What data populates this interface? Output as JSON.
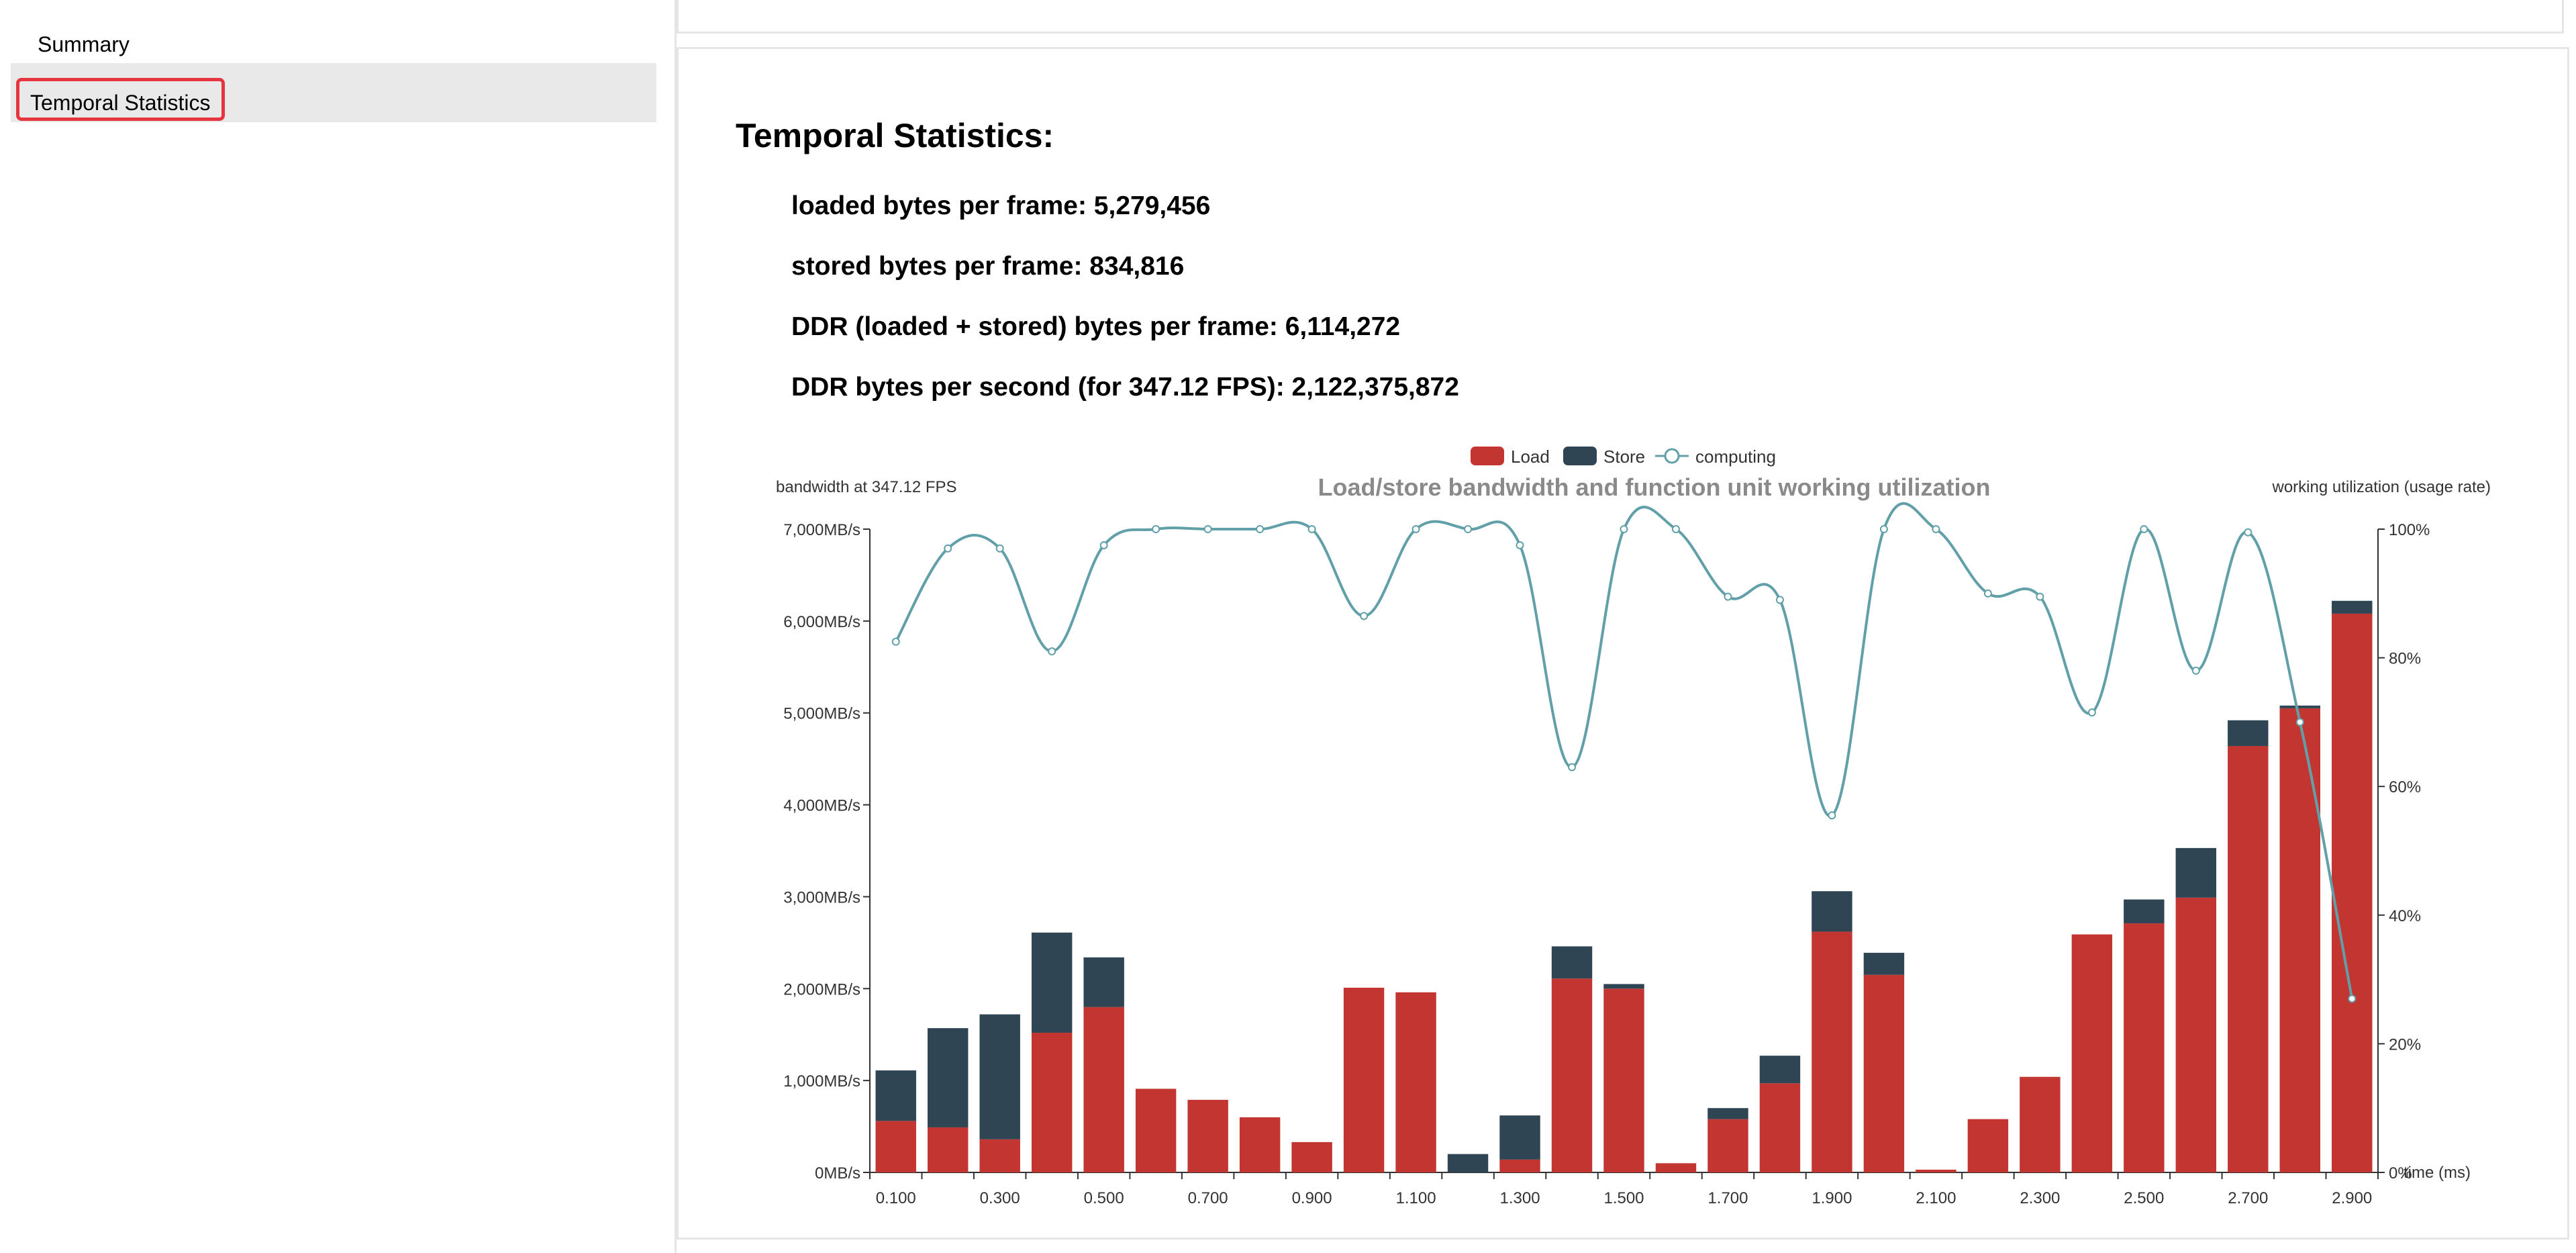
{
  "sidebar": {
    "items": [
      {
        "label": "Summary"
      },
      {
        "label": "Temporal Statistics"
      }
    ]
  },
  "main": {
    "title": "Temporal Statistics:",
    "stats": [
      {
        "label": "loaded bytes per frame: 5,279,456"
      },
      {
        "label": "stored bytes per frame: 834,816"
      },
      {
        "label": "DDR (loaded + stored) bytes per frame: 6,114,272"
      },
      {
        "label": "DDR bytes per second (for 347.12 FPS): 2,122,375,872"
      }
    ]
  },
  "colors": {
    "load": "#c23531",
    "store": "#2f4554",
    "computing": "#61a0a8"
  },
  "chart_data": {
    "type": "bar",
    "title": "Load/store bandwidth and function unit working utilization",
    "ylabel_left": "bandwidth at 347.12 FPS",
    "ylabel_right": "working utilization (usage rate)",
    "xlabel": "time (ms)",
    "legend": [
      "Load",
      "Store",
      "computing"
    ],
    "y_left_ticks": [
      "0MB/s",
      "1,000MB/s",
      "2,000MB/s",
      "3,000MB/s",
      "4,000MB/s",
      "5,000MB/s",
      "6,000MB/s",
      "7,000MB/s"
    ],
    "y_right_ticks": [
      "0%",
      "20%",
      "40%",
      "60%",
      "80%",
      "100%"
    ],
    "x_tick_labels": [
      "0.100",
      "0.300",
      "0.500",
      "0.700",
      "0.900",
      "1.100",
      "1.300",
      "1.500",
      "1.700",
      "1.900",
      "2.100",
      "2.300",
      "2.500",
      "2.700",
      "2.900"
    ],
    "ylim_left": [
      0,
      7000
    ],
    "ylim_right": [
      0,
      100
    ],
    "x": [
      0.1,
      0.2,
      0.3,
      0.4,
      0.5,
      0.6,
      0.7,
      0.8,
      0.9,
      1.0,
      1.1,
      1.2,
      1.3,
      1.4,
      1.5,
      1.6,
      1.7,
      1.8,
      1.9,
      2.0,
      2.1,
      2.2,
      2.3,
      2.4,
      2.5,
      2.6,
      2.7,
      2.8,
      2.9
    ],
    "series": [
      {
        "name": "Load",
        "type": "bar",
        "stack": true,
        "values": [
          560,
          490,
          360,
          1520,
          1800,
          910,
          790,
          600,
          330,
          2010,
          1960,
          0,
          140,
          2110,
          2000,
          100,
          580,
          970,
          2620,
          2150,
          30,
          580,
          1040,
          2590,
          2710,
          2990,
          4640,
          5050,
          6080
        ]
      },
      {
        "name": "Store",
        "type": "bar",
        "stack": true,
        "values": [
          550,
          1080,
          1360,
          1090,
          540,
          0,
          0,
          0,
          0,
          0,
          0,
          200,
          480,
          350,
          50,
          0,
          120,
          300,
          440,
          240,
          0,
          0,
          0,
          0,
          260,
          540,
          280,
          30,
          140
        ]
      },
      {
        "name": "computing",
        "type": "line",
        "values": [
          82.5,
          97,
          97,
          81,
          97.5,
          100,
          100,
          100,
          100,
          86.5,
          100,
          100,
          97.5,
          63,
          100,
          100,
          89.5,
          89,
          55.5,
          100,
          100,
          90,
          89.5,
          71.5,
          100,
          78,
          99.5,
          70,
          27
        ]
      }
    ]
  }
}
